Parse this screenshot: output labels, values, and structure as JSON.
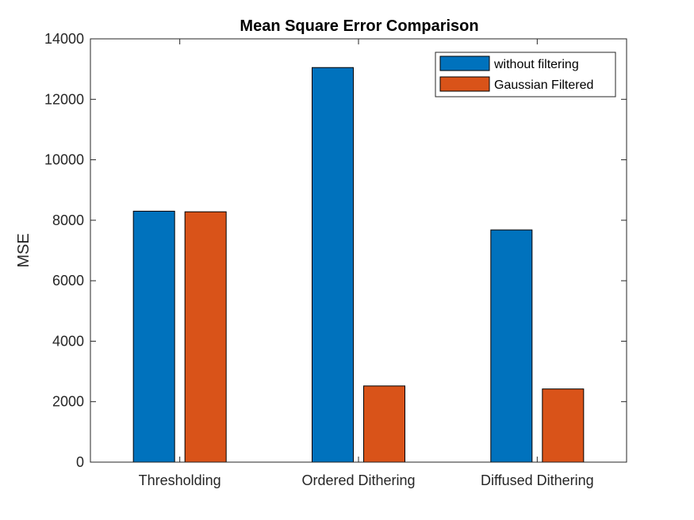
{
  "chart_data": {
    "type": "bar",
    "title": "Mean Square Error Comparison",
    "xlabel": "",
    "ylabel": "MSE",
    "ylim": [
      0,
      14000
    ],
    "yticks": [
      0,
      2000,
      4000,
      6000,
      8000,
      10000,
      12000,
      14000
    ],
    "categories": [
      "Thresholding",
      "Ordered Dithering",
      "Diffused Dithering"
    ],
    "series": [
      {
        "name": "without filtering",
        "color": "#0072BD",
        "values": [
          8300,
          13050,
          7680
        ]
      },
      {
        "name": "Gaussian Filtered",
        "color": "#D95319",
        "values": [
          8280,
          2520,
          2420
        ]
      }
    ],
    "legend_position": "top-right",
    "grid": false
  }
}
